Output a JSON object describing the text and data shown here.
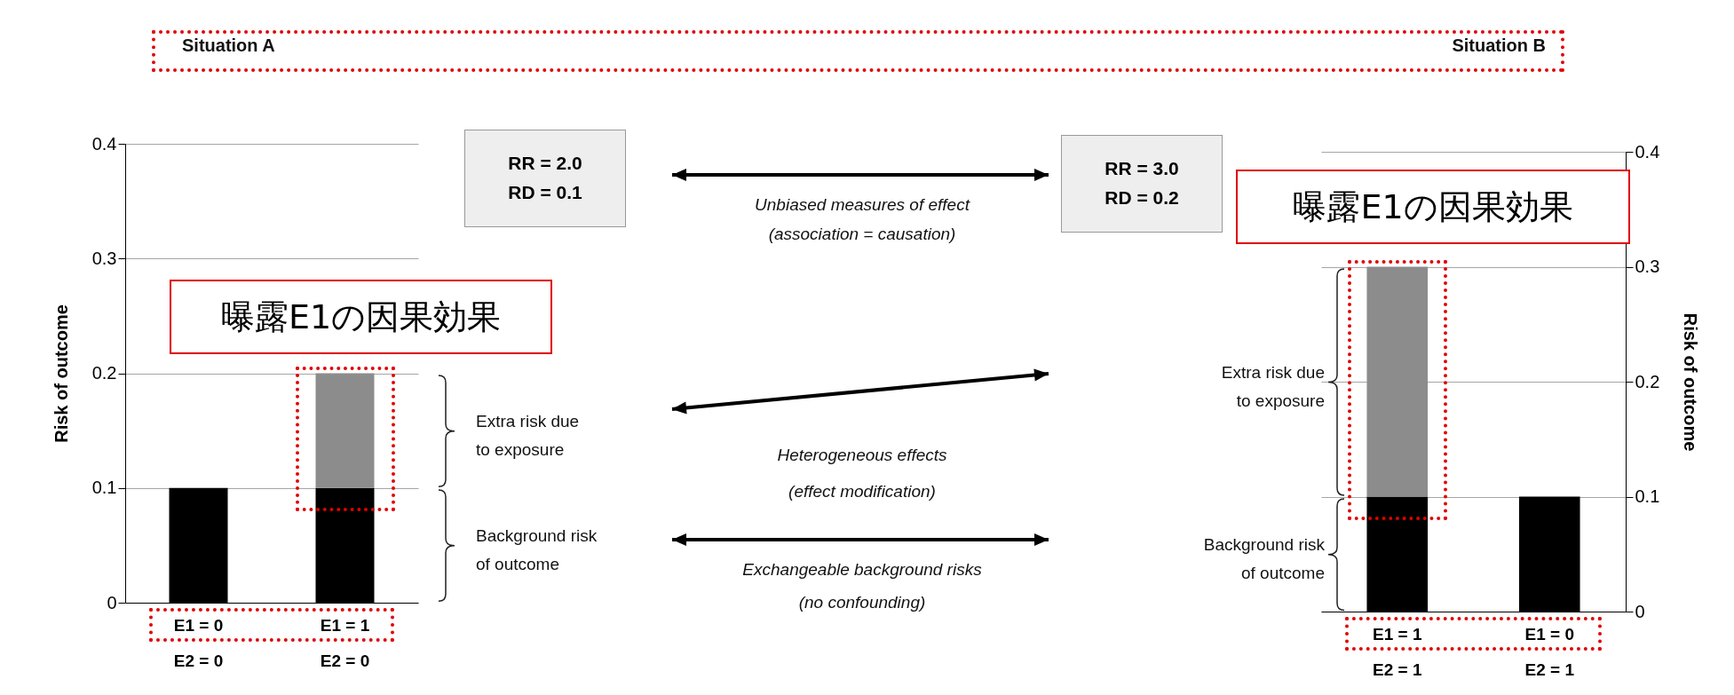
{
  "chart_data": [
    {
      "type": "bar",
      "title": "Situation A",
      "ylabel": "Risk of outcome",
      "stacked": true,
      "grid": "y",
      "categories": [
        "E1 = 0\nE2 = 0",
        "E1 = 1\nE2 = 0"
      ],
      "series": [
        {
          "name": "Background risk of outcome",
          "color": "#000000",
          "values": [
            0.1,
            0.1
          ]
        },
        {
          "name": "Extra risk due to exposure",
          "color": "#8c8c8c",
          "values": [
            0,
            0.1
          ]
        }
      ],
      "ylim": [
        0,
        0.4
      ],
      "yticks": [
        0,
        0.1,
        0.2,
        0.3,
        0.4
      ],
      "annotations": [
        "RR = 2.0",
        "RD = 0.1",
        "曝露E1の因果効果",
        "Unbiased measures of effect",
        "(association = causation)",
        "Heterogeneous effects",
        "(effect modification)",
        "Exchangeable background risks",
        "(no confounding)"
      ]
    },
    {
      "type": "bar",
      "title": "Situation B",
      "y2label": "Risk of outcome",
      "stacked": true,
      "grid": "y",
      "categories": [
        "E1 = 1\nE2 = 1",
        "E1 = 0\nE2 = 1"
      ],
      "series": [
        {
          "name": "Background risk of outcome",
          "color": "#000000",
          "values": [
            0.1,
            0.1
          ],
          "axis": "y2"
        },
        {
          "name": "Extra risk due to exposure",
          "color": "#8c8c8c",
          "values": [
            0.2,
            0
          ],
          "axis": "y2"
        }
      ],
      "y2lim": [
        0,
        0.4
      ],
      "y2ticks": [
        0,
        0.1,
        0.2,
        0.3,
        0.4
      ],
      "annotations": [
        "RR = 3.0",
        "RD = 0.2",
        "曝露E1の因果効果"
      ]
    }
  ]
}
